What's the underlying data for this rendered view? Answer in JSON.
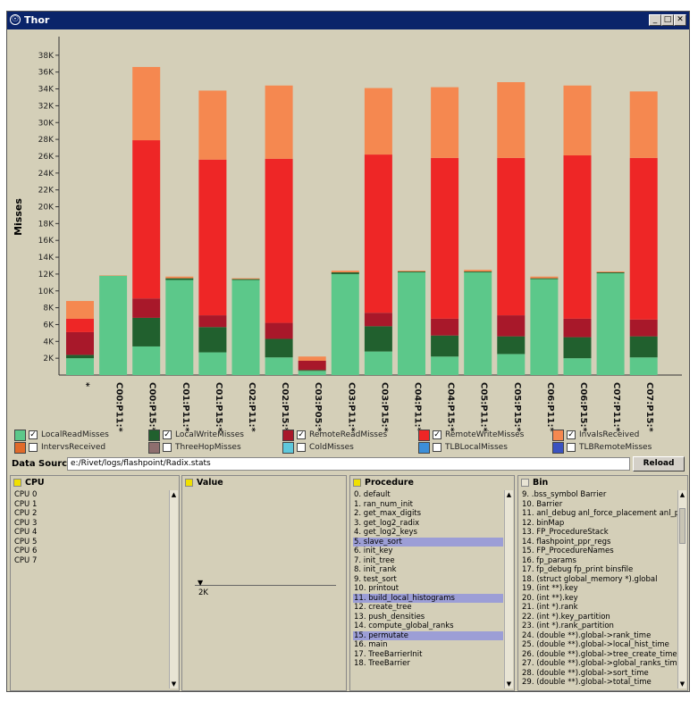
{
  "window": {
    "title": "Thor",
    "icon": "app-icon",
    "controls": [
      "minimize",
      "maximize",
      "close"
    ]
  },
  "chart_data": {
    "type": "bar",
    "stacked": true,
    "title": "",
    "xlabel": "",
    "ylabel": "Misses",
    "ylim": [
      0,
      40000
    ],
    "yticks": [
      "2K",
      "4K",
      "6K",
      "8K",
      "10K",
      "12K",
      "14K",
      "16K",
      "18K",
      "20K",
      "22K",
      "24K",
      "26K",
      "28K",
      "30K",
      "32K",
      "34K",
      "36K",
      "38K"
    ],
    "categories": [
      "*",
      "C00:P11:*",
      "C00:P15:*",
      "C01:P11:*",
      "C01:P15:*",
      "C02:P11:*",
      "C02:P15:*",
      "C03:P05:*",
      "C03:P11:*",
      "C03:P15:*",
      "C04:P11:*",
      "C04:P15:*",
      "C05:P11:*",
      "C05:P15:*",
      "C06:P11:*",
      "C06:P15:*",
      "C07:P11:*",
      "C07:P15:*"
    ],
    "series": [
      {
        "name": "LocalReadMisses",
        "color": "#5cc88a",
        "values": [
          2000,
          11800,
          3400,
          11300,
          2700,
          11300,
          2100,
          500,
          12000,
          2800,
          12200,
          2200,
          12200,
          2500,
          11400,
          2000,
          12100,
          2100
        ]
      },
      {
        "name": "LocalWriteMisses",
        "color": "#21602e",
        "values": [
          400,
          0,
          3400,
          200,
          3000,
          100,
          2200,
          100,
          200,
          3000,
          100,
          2500,
          100,
          2100,
          100,
          2500,
          100,
          2500
        ]
      },
      {
        "name": "RemoteReadMisses",
        "color": "#a8182a",
        "values": [
          2700,
          0,
          2300,
          0,
          1400,
          0,
          1900,
          1100,
          0,
          1600,
          0,
          2000,
          0,
          2500,
          0,
          2200,
          0,
          2000
        ]
      },
      {
        "name": "RemoteWriteMisses",
        "color": "#ee2626",
        "values": [
          1600,
          0,
          18800,
          0,
          18500,
          0,
          19500,
          0,
          0,
          18800,
          0,
          19100,
          0,
          18700,
          0,
          19400,
          0,
          19200
        ]
      },
      {
        "name": "InvalsReceived",
        "color": "#f58850",
        "values": [
          2100,
          50,
          8700,
          200,
          8200,
          100,
          8700,
          500,
          200,
          7900,
          100,
          8400,
          200,
          9000,
          200,
          8300,
          100,
          7900
        ]
      }
    ],
    "legend": [
      {
        "name": "LocalReadMisses",
        "color": "#5cc88a",
        "checked": true
      },
      {
        "name": "LocalWriteMisses",
        "color": "#21602e",
        "checked": true
      },
      {
        "name": "RemoteReadMisses",
        "color": "#a8182a",
        "checked": true
      },
      {
        "name": "RemoteWriteMisses",
        "color": "#ee2626",
        "checked": true
      },
      {
        "name": "InvalsReceived",
        "color": "#f58850",
        "checked": true
      },
      {
        "name": "IntervsReceived",
        "color": "#e06a2a",
        "checked": false
      },
      {
        "name": "ThreeHopMisses",
        "color": "#8e6e6e",
        "checked": false
      },
      {
        "name": "ColdMisses",
        "color": "#5ec8dc",
        "checked": false
      },
      {
        "name": "TLBLocalMisses",
        "color": "#3c8ed8",
        "checked": false
      },
      {
        "name": "TLBRemoteMisses",
        "color": "#3a52c0",
        "checked": false
      }
    ]
  },
  "datasource": {
    "label": "Data Source:",
    "value": "e:/Rivet/logs/flashpoint/Radix.stats",
    "reload_label": "Reload"
  },
  "panels": {
    "cpu": {
      "title": "CPU",
      "items": [
        "CPU 0",
        "CPU 1",
        "CPU 2",
        "CPU 3",
        "CPU 4",
        "CPU 5",
        "CPU 6",
        "CPU 7"
      ]
    },
    "value": {
      "title": "Value",
      "marker_label": "2K"
    },
    "procedure": {
      "title": "Procedure",
      "items": [
        "0. default",
        "1. ran_num_init",
        "2. get_max_digits",
        "3. get_log2_radix",
        "4. get_log2_keys",
        "5. slave_sort",
        "6. init_key",
        "7. init_tree",
        "8. init_rank",
        "9. test_sort",
        "10. printout",
        "11. build_local_histograms",
        "12. create_tree",
        "13. push_densities",
        "14. compute_global_ranks",
        "15. permutate",
        "16. main",
        "17. TreeBarrierInit",
        "18. TreeBarrier"
      ],
      "selected": [
        5,
        11,
        15
      ]
    },
    "bin": {
      "title": "Bin",
      "items": [
        "9. .bss_symbol Barrier",
        "10. Barrier",
        "11. anl_debug anl_force_placement anl_p",
        "12. binMap",
        "13. FP_ProcedureStack",
        "14. flashpoint_ppr_regs",
        "15. FP_ProcedureNames",
        "16. fp_params",
        "17. fp_debug fp_print binsfile",
        "18. (struct global_memory *).global",
        "19. (int **).key",
        "20. (int **).key",
        "21. (int *).rank",
        "22. (int *).key_partition",
        "23. (int *).rank_partition",
        "24. (double **).global->rank_time",
        "25. (double **).global->local_hist_time",
        "26. (double **).global->tree_create_time",
        "27. (double **).global->global_ranks_time",
        "28. (double **).global->sort_time",
        "29. (double **).global->total_time"
      ]
    }
  }
}
